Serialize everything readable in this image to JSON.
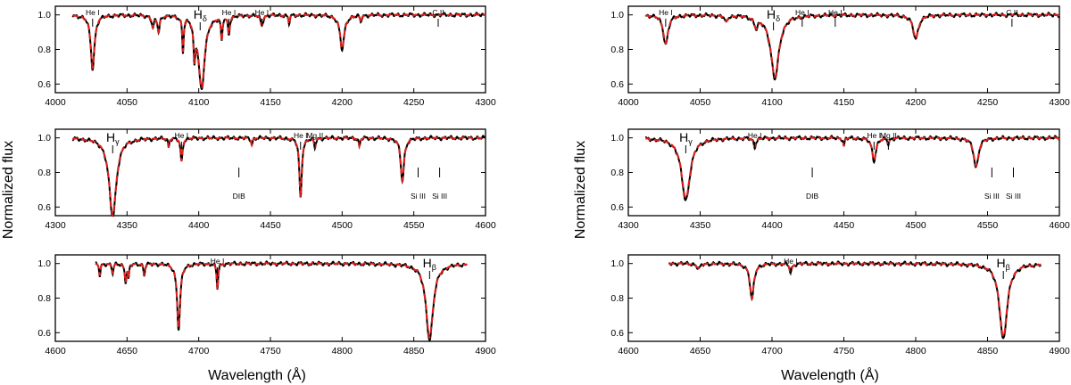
{
  "figure": {
    "ylabel": "Normalized flux",
    "xlabel": "Wavelength (Å)"
  },
  "colors": {
    "observed": "#000000",
    "model": "#e0201b",
    "axes": "#000000"
  },
  "chart_data": [
    {
      "type": "line",
      "column": "left",
      "row": 0,
      "xlim": [
        4000,
        4300
      ],
      "ylim": [
        0.55,
        1.05
      ],
      "xticks": [
        4000,
        4050,
        4100,
        4150,
        4200,
        4250,
        4300
      ],
      "yticks": [
        0.6,
        0.8,
        1.0
      ],
      "lines": [
        {
          "w": 4026,
          "depth": 0.31,
          "width": 1.6
        },
        {
          "w": 4068,
          "depth": 0.07,
          "width": 1.0
        },
        {
          "w": 4072,
          "depth": 0.09,
          "width": 0.9
        },
        {
          "w": 4089,
          "depth": 0.2,
          "width": 0.6
        },
        {
          "w": 4097,
          "depth": 0.2,
          "width": 0.7
        },
        {
          "w": 4102,
          "depth": 0.43,
          "width": 2.6
        },
        {
          "w": 4116,
          "depth": 0.14,
          "width": 0.6
        },
        {
          "w": 4121,
          "depth": 0.1,
          "width": 0.8
        },
        {
          "w": 4144,
          "depth": 0.06,
          "width": 1.0
        },
        {
          "w": 4163,
          "depth": 0.05,
          "width": 0.6
        },
        {
          "w": 4200,
          "depth": 0.2,
          "width": 1.8
        },
        {
          "w": 4213,
          "depth": 0.04,
          "width": 0.6
        }
      ],
      "labels": [
        {
          "text": "He I",
          "w": 4026,
          "level": "high"
        },
        {
          "text": "H",
          "sub": "δ",
          "w": 4101,
          "level": "high",
          "big": true
        },
        {
          "text": "He I",
          "w": 4121,
          "level": "high"
        },
        {
          "text": "He I",
          "w": 4144,
          "level": "high"
        },
        {
          "text": "C II",
          "w": 4267,
          "level": "high"
        }
      ]
    },
    {
      "type": "line",
      "column": "right",
      "row": 0,
      "xlim": [
        4000,
        4300
      ],
      "ylim": [
        0.55,
        1.05
      ],
      "xticks": [
        4000,
        4050,
        4100,
        4150,
        4200,
        4250,
        4300
      ],
      "yticks": [
        0.6,
        0.8,
        1.0
      ],
      "lines": [
        {
          "w": 4026,
          "depth": 0.17,
          "width": 2.0
        },
        {
          "w": 4068,
          "depth": 0.04,
          "width": 1.2
        },
        {
          "w": 4089,
          "depth": 0.06,
          "width": 1.5
        },
        {
          "w": 4102,
          "depth": 0.37,
          "width": 3.4
        },
        {
          "w": 4200,
          "depth": 0.14,
          "width": 2.2
        }
      ],
      "labels": [
        {
          "text": "He I",
          "w": 4026,
          "level": "high"
        },
        {
          "text": "H",
          "sub": "δ",
          "w": 4101,
          "level": "high",
          "big": true
        },
        {
          "text": "He I",
          "w": 4121,
          "level": "high"
        },
        {
          "text": "He I",
          "w": 4144,
          "level": "high"
        },
        {
          "text": "C II",
          "w": 4267,
          "level": "high"
        }
      ]
    },
    {
      "type": "line",
      "column": "left",
      "row": 1,
      "xlim": [
        4300,
        4600
      ],
      "ylim": [
        0.55,
        1.05
      ],
      "xticks": [
        4300,
        4350,
        4400,
        4450,
        4500,
        4550,
        4600
      ],
      "yticks": [
        0.6,
        0.8,
        1.0
      ],
      "lines": [
        {
          "w": 4340,
          "depth": 0.46,
          "width": 3.0
        },
        {
          "w": 4379,
          "depth": 0.05,
          "width": 0.5
        },
        {
          "w": 4388,
          "depth": 0.14,
          "width": 0.8
        },
        {
          "w": 4437,
          "depth": 0.04,
          "width": 0.6
        },
        {
          "w": 4471,
          "depth": 0.35,
          "width": 1.0
        },
        {
          "w": 4481,
          "depth": 0.06,
          "width": 0.6
        },
        {
          "w": 4512,
          "depth": 0.05,
          "width": 0.6
        },
        {
          "w": 4542,
          "depth": 0.25,
          "width": 1.4
        }
      ],
      "labels": [
        {
          "text": "H",
          "sub": "γ",
          "w": 4340,
          "level": "high",
          "big": true
        },
        {
          "text": "He I",
          "w": 4388,
          "level": "high"
        },
        {
          "text": "He I",
          "w": 4471,
          "level": "high"
        },
        {
          "text": "Mg II",
          "w": 4481,
          "level": "high"
        },
        {
          "text": "DIB",
          "w": 4428,
          "level": "low"
        },
        {
          "text": "Si III",
          "w": 4553,
          "level": "low"
        },
        {
          "text": "Si III",
          "w": 4568,
          "level": "low"
        }
      ]
    },
    {
      "type": "line",
      "column": "right",
      "row": 1,
      "xlim": [
        4300,
        4600
      ],
      "ylim": [
        0.55,
        1.05
      ],
      "xticks": [
        4300,
        4350,
        4400,
        4450,
        4500,
        4550,
        4600
      ],
      "yticks": [
        0.6,
        0.8,
        1.0
      ],
      "lines": [
        {
          "w": 4340,
          "depth": 0.36,
          "width": 3.6
        },
        {
          "w": 4388,
          "depth": 0.05,
          "width": 1.0
        },
        {
          "w": 4450,
          "depth": 0.05,
          "width": 0.5
        },
        {
          "w": 4471,
          "depth": 0.13,
          "width": 1.6
        },
        {
          "w": 4481,
          "depth": 0.03,
          "width": 0.8
        },
        {
          "w": 4542,
          "depth": 0.17,
          "width": 2.0
        }
      ],
      "labels": [
        {
          "text": "H",
          "sub": "γ",
          "w": 4340,
          "level": "high",
          "big": true
        },
        {
          "text": "He I",
          "w": 4388,
          "level": "high"
        },
        {
          "text": "He I",
          "w": 4471,
          "level": "high"
        },
        {
          "text": "Mg II",
          "w": 4481,
          "level": "high"
        },
        {
          "text": "DIB",
          "w": 4428,
          "level": "low"
        },
        {
          "text": "Si III",
          "w": 4553,
          "level": "low"
        },
        {
          "text": "Si III",
          "w": 4568,
          "level": "low"
        }
      ]
    },
    {
      "type": "line",
      "column": "left",
      "row": 2,
      "xlim": [
        4600,
        4900
      ],
      "ylim": [
        0.55,
        1.05
      ],
      "xticks": [
        4600,
        4650,
        4700,
        4750,
        4800,
        4850,
        4900
      ],
      "yticks": [
        0.6,
        0.8,
        1.0
      ],
      "span": [
        4628,
        4887
      ],
      "lines": [
        {
          "w": 4631,
          "depth": 0.07,
          "width": 0.6
        },
        {
          "w": 4640,
          "depth": 0.06,
          "width": 0.6
        },
        {
          "w": 4649,
          "depth": 0.1,
          "width": 0.7
        },
        {
          "w": 4651,
          "depth": 0.08,
          "width": 0.6
        },
        {
          "w": 4662,
          "depth": 0.07,
          "width": 0.6
        },
        {
          "w": 4686,
          "depth": 0.38,
          "width": 1.3
        },
        {
          "w": 4713,
          "depth": 0.15,
          "width": 0.6
        },
        {
          "w": 4861,
          "depth": 0.44,
          "width": 3.0
        }
      ],
      "labels": [
        {
          "text": "He I",
          "w": 4713,
          "level": "high"
        },
        {
          "text": "H",
          "sub": "β",
          "w": 4861,
          "level": "high",
          "big": true
        }
      ]
    },
    {
      "type": "line",
      "column": "right",
      "row": 2,
      "xlim": [
        4600,
        4900
      ],
      "ylim": [
        0.55,
        1.05
      ],
      "xticks": [
        4600,
        4650,
        4700,
        4750,
        4800,
        4850,
        4900
      ],
      "yticks": [
        0.6,
        0.8,
        1.0
      ],
      "span": [
        4628,
        4887
      ],
      "lines": [
        {
          "w": 4649,
          "depth": 0.03,
          "width": 1.5
        },
        {
          "w": 4686,
          "depth": 0.21,
          "width": 1.6
        },
        {
          "w": 4713,
          "depth": 0.05,
          "width": 1.0
        },
        {
          "w": 4861,
          "depth": 0.44,
          "width": 3.2
        }
      ],
      "labels": [
        {
          "text": "He I",
          "w": 4713,
          "level": "high"
        },
        {
          "text": "H",
          "sub": "β",
          "w": 4861,
          "level": "high",
          "big": true
        }
      ]
    }
  ]
}
